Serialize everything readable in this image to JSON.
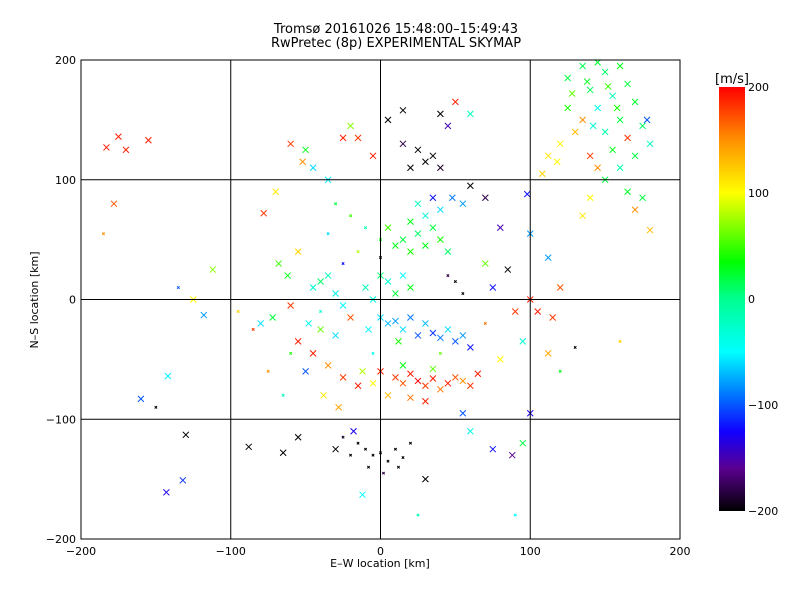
{
  "chart_data": {
    "type": "scatter",
    "title": "Tromsø 20161026 15:48:00–15:49:43",
    "subtitle": "RwPretec (8p) EXPERIMENTAL SKYMAP",
    "xlabel": "E–W location [km]",
    "ylabel": "N–S location [km]",
    "xlim": [
      -200,
      200
    ],
    "ylim": [
      -200,
      200
    ],
    "xticks": [
      "−200",
      "−100",
      "0",
      "100",
      "200"
    ],
    "yticks": [
      "−200",
      "−100",
      "0",
      "100",
      "200"
    ],
    "grid": true,
    "colorbar": {
      "label": "[m/s]",
      "range": [
        -200,
        200
      ],
      "ticks": [
        "200",
        "100",
        "0",
        "−100",
        "−200"
      ],
      "stops": [
        {
          "v": -200,
          "color": "#000000"
        },
        {
          "v": -160,
          "color": "#5a0090"
        },
        {
          "v": -125,
          "color": "#1000ff"
        },
        {
          "v": -90,
          "color": "#0078ff"
        },
        {
          "v": -50,
          "color": "#00ffff"
        },
        {
          "v": 0,
          "color": "#00ff90"
        },
        {
          "v": 35,
          "color": "#00ff00"
        },
        {
          "v": 100,
          "color": "#ffff00"
        },
        {
          "v": 150,
          "color": "#ff9000"
        },
        {
          "v": 200,
          "color": "#ff0000"
        }
      ]
    },
    "points_format": [
      "x_km",
      "y_km",
      "velocity_m_s",
      "marker"
    ],
    "points": [
      [
        125,
        185,
        20,
        "x"
      ],
      [
        135,
        195,
        15,
        "x"
      ],
      [
        145,
        198,
        25,
        "x"
      ],
      [
        150,
        190,
        10,
        "x"
      ],
      [
        160,
        195,
        30,
        "x"
      ],
      [
        165,
        180,
        20,
        "x"
      ],
      [
        140,
        175,
        15,
        "x"
      ],
      [
        155,
        170,
        -20,
        "x"
      ],
      [
        170,
        165,
        25,
        "x"
      ],
      [
        145,
        160,
        -40,
        "x"
      ],
      [
        160,
        150,
        20,
        "x"
      ],
      [
        175,
        145,
        10,
        "x"
      ],
      [
        135,
        150,
        150,
        "x"
      ],
      [
        130,
        140,
        130,
        "x"
      ],
      [
        150,
        140,
        -10,
        "x"
      ],
      [
        165,
        135,
        180,
        "x"
      ],
      [
        155,
        125,
        30,
        "x"
      ],
      [
        170,
        120,
        20,
        "x"
      ],
      [
        140,
        120,
        180,
        "x"
      ],
      [
        125,
        160,
        40,
        "x"
      ],
      [
        120,
        130,
        100,
        "x"
      ],
      [
        145,
        110,
        150,
        "x"
      ],
      [
        160,
        110,
        -10,
        "x"
      ],
      [
        178,
        150,
        -100,
        "x"
      ],
      [
        180,
        130,
        -20,
        "x"
      ],
      [
        150,
        100,
        20,
        "x"
      ],
      [
        165,
        90,
        25,
        "x"
      ],
      [
        175,
        85,
        20,
        "x"
      ],
      [
        140,
        85,
        100,
        "x"
      ],
      [
        170,
        75,
        150,
        "x"
      ],
      [
        180,
        58,
        130,
        "x"
      ],
      [
        135,
        70,
        110,
        "x"
      ],
      [
        112,
        120,
        110,
        "x"
      ],
      [
        118,
        115,
        100,
        "x"
      ],
      [
        108,
        105,
        120,
        "x"
      ],
      [
        138,
        182,
        30,
        "x"
      ],
      [
        152,
        178,
        50,
        "x"
      ],
      [
        142,
        145,
        -30,
        "x"
      ],
      [
        158,
        160,
        40,
        "x"
      ],
      [
        128,
        172,
        60,
        "x"
      ],
      [
        -183,
        127,
        190,
        "x"
      ],
      [
        -175,
        136,
        190,
        "x"
      ],
      [
        -170,
        125,
        190,
        "x"
      ],
      [
        -155,
        133,
        190,
        "x"
      ],
      [
        -178,
        80,
        170,
        "x"
      ],
      [
        -125,
        0,
        100,
        "x"
      ],
      [
        -112,
        25,
        70,
        "x"
      ],
      [
        -142,
        -64,
        -50,
        "x"
      ],
      [
        -160,
        -83,
        -100,
        "x"
      ],
      [
        -143,
        -161,
        -130,
        "x"
      ],
      [
        -132,
        -151,
        -110,
        "x"
      ],
      [
        -130,
        -113,
        -200,
        "x"
      ],
      [
        -88,
        -123,
        -200,
        "x"
      ],
      [
        -65,
        -128,
        -200,
        "x"
      ],
      [
        -118,
        -13,
        -80,
        "x"
      ],
      [
        -60,
        -5,
        180,
        "x"
      ],
      [
        -72,
        -15,
        20,
        "x"
      ],
      [
        -80,
        -20,
        -60,
        "x"
      ],
      [
        -68,
        30,
        50,
        "x"
      ],
      [
        -62,
        20,
        30,
        "x"
      ],
      [
        -55,
        40,
        120,
        "x"
      ],
      [
        -45,
        10,
        -30,
        "x"
      ],
      [
        -40,
        15,
        10,
        "x"
      ],
      [
        -35,
        20,
        -20,
        "x"
      ],
      [
        -30,
        5,
        -40,
        "x"
      ],
      [
        -25,
        -5,
        -50,
        "x"
      ],
      [
        -48,
        -20,
        -40,
        "x"
      ],
      [
        -40,
        -25,
        60,
        "x"
      ],
      [
        -30,
        -30,
        -60,
        "x"
      ],
      [
        -20,
        -15,
        170,
        "x"
      ],
      [
        -55,
        -35,
        190,
        "x"
      ],
      [
        -45,
        -45,
        190,
        "x"
      ],
      [
        -35,
        -55,
        150,
        "x"
      ],
      [
        -25,
        -65,
        180,
        "x"
      ],
      [
        -15,
        -72,
        190,
        "x"
      ],
      [
        -38,
        -80,
        110,
        "x"
      ],
      [
        -28,
        -90,
        140,
        "x"
      ],
      [
        -50,
        -60,
        -100,
        "x"
      ],
      [
        -10,
        10,
        -20,
        "x"
      ],
      [
        0,
        20,
        10,
        "x"
      ],
      [
        5,
        15,
        -30,
        "x"
      ],
      [
        10,
        5,
        20,
        "x"
      ],
      [
        15,
        20,
        -50,
        "x"
      ],
      [
        20,
        10,
        30,
        "x"
      ],
      [
        -5,
        0,
        -40,
        "x"
      ],
      [
        0,
        -15,
        -60,
        "x"
      ],
      [
        5,
        -20,
        -70,
        "x"
      ],
      [
        10,
        -18,
        -80,
        "x"
      ],
      [
        15,
        -25,
        -60,
        "x"
      ],
      [
        20,
        -15,
        -90,
        "x"
      ],
      [
        25,
        -30,
        -100,
        "x"
      ],
      [
        30,
        -20,
        -70,
        "x"
      ],
      [
        35,
        -28,
        -110,
        "x"
      ],
      [
        40,
        -32,
        -90,
        "x"
      ],
      [
        45,
        -25,
        -60,
        "x"
      ],
      [
        50,
        -35,
        -100,
        "x"
      ],
      [
        55,
        -30,
        -80,
        "x"
      ],
      [
        60,
        -40,
        -120,
        "x"
      ],
      [
        -8,
        -25,
        -50,
        "x"
      ],
      [
        12,
        -35,
        40,
        "x"
      ],
      [
        0,
        -60,
        190,
        "x"
      ],
      [
        10,
        -65,
        180,
        "x"
      ],
      [
        15,
        -70,
        170,
        "x"
      ],
      [
        20,
        -62,
        190,
        "x"
      ],
      [
        25,
        -68,
        200,
        "x"
      ],
      [
        30,
        -72,
        180,
        "x"
      ],
      [
        35,
        -66,
        190,
        "x"
      ],
      [
        40,
        -75,
        160,
        "x"
      ],
      [
        45,
        -70,
        190,
        "x"
      ],
      [
        50,
        -65,
        170,
        "x"
      ],
      [
        55,
        -68,
        150,
        "x"
      ],
      [
        60,
        -72,
        180,
        "x"
      ],
      [
        5,
        -80,
        130,
        "x"
      ],
      [
        20,
        -82,
        160,
        "x"
      ],
      [
        30,
        -85,
        190,
        "x"
      ],
      [
        -5,
        -70,
        100,
        "x"
      ],
      [
        -12,
        -60,
        80,
        "x"
      ],
      [
        15,
        -55,
        30,
        "x"
      ],
      [
        35,
        -58,
        60,
        "x"
      ],
      [
        65,
        -62,
        190,
        "x"
      ],
      [
        -15,
        -120,
        -200,
        "+"
      ],
      [
        -10,
        -125,
        -200,
        "+"
      ],
      [
        -5,
        -130,
        -200,
        "+"
      ],
      [
        0,
        -128,
        -200,
        "+"
      ],
      [
        5,
        -135,
        -200,
        "+"
      ],
      [
        10,
        -125,
        -200,
        "+"
      ],
      [
        15,
        -132,
        -200,
        "+"
      ],
      [
        -20,
        -130,
        -200,
        "+"
      ],
      [
        -8,
        -140,
        -200,
        "+"
      ],
      [
        2,
        -145,
        -180,
        "+"
      ],
      [
        12,
        -140,
        -200,
        "+"
      ],
      [
        -25,
        -115,
        -190,
        "+"
      ],
      [
        -30,
        -125,
        -200,
        "x"
      ],
      [
        -18,
        -110,
        -130,
        "x"
      ],
      [
        20,
        -120,
        -200,
        "+"
      ],
      [
        30,
        -150,
        -200,
        "x"
      ],
      [
        -12,
        -163,
        -50,
        "x"
      ],
      [
        -55,
        -115,
        -200,
        "x"
      ],
      [
        10,
        45,
        30,
        "x"
      ],
      [
        15,
        50,
        20,
        "x"
      ],
      [
        20,
        40,
        40,
        "x"
      ],
      [
        25,
        55,
        10,
        "x"
      ],
      [
        30,
        45,
        30,
        "x"
      ],
      [
        35,
        60,
        20,
        "x"
      ],
      [
        40,
        50,
        40,
        "x"
      ],
      [
        45,
        40,
        10,
        "x"
      ],
      [
        5,
        60,
        50,
        "x"
      ],
      [
        20,
        65,
        30,
        "x"
      ],
      [
        30,
        70,
        -30,
        "x"
      ],
      [
        40,
        75,
        -60,
        "x"
      ],
      [
        48,
        85,
        -90,
        "x"
      ],
      [
        35,
        85,
        -120,
        "x"
      ],
      [
        55,
        80,
        -80,
        "x"
      ],
      [
        25,
        80,
        -20,
        "x"
      ],
      [
        30,
        115,
        -200,
        "x"
      ],
      [
        35,
        120,
        -200,
        "x"
      ],
      [
        25,
        125,
        -200,
        "x"
      ],
      [
        40,
        110,
        -190,
        "x"
      ],
      [
        20,
        110,
        -200,
        "x"
      ],
      [
        15,
        130,
        -180,
        "x"
      ],
      [
        5,
        150,
        -200,
        "x"
      ],
      [
        15,
        158,
        -200,
        "x"
      ],
      [
        40,
        155,
        -200,
        "x"
      ],
      [
        45,
        145,
        -150,
        "x"
      ],
      [
        -25,
        135,
        190,
        "x"
      ],
      [
        -15,
        135,
        180,
        "x"
      ],
      [
        -5,
        120,
        190,
        "x"
      ],
      [
        -20,
        145,
        70,
        "x"
      ],
      [
        -45,
        110,
        -60,
        "x"
      ],
      [
        -50,
        125,
        30,
        "x"
      ],
      [
        -35,
        100,
        -50,
        "x"
      ],
      [
        -60,
        130,
        180,
        "x"
      ],
      [
        -52,
        115,
        150,
        "x"
      ],
      [
        50,
        165,
        190,
        "x"
      ],
      [
        60,
        155,
        -20,
        "x"
      ],
      [
        -70,
        90,
        110,
        "x"
      ],
      [
        -78,
        72,
        180,
        "x"
      ],
      [
        60,
        95,
        -200,
        "x"
      ],
      [
        70,
        85,
        -180,
        "x"
      ],
      [
        80,
        60,
        -150,
        "x"
      ],
      [
        85,
        25,
        -200,
        "x"
      ],
      [
        75,
        10,
        -120,
        "x"
      ],
      [
        70,
        30,
        60,
        "x"
      ],
      [
        90,
        -10,
        180,
        "x"
      ],
      [
        100,
        0,
        190,
        "x"
      ],
      [
        95,
        -35,
        -30,
        "x"
      ],
      [
        80,
        -50,
        100,
        "x"
      ],
      [
        100,
        -95,
        -130,
        "x"
      ],
      [
        55,
        -95,
        -100,
        "x"
      ],
      [
        60,
        -110,
        -40,
        "x"
      ],
      [
        75,
        -125,
        -120,
        "x"
      ],
      [
        88,
        -130,
        -160,
        "x"
      ],
      [
        95,
        -120,
        20,
        "x"
      ],
      [
        105,
        -10,
        190,
        "x"
      ],
      [
        115,
        -15,
        180,
        "x"
      ],
      [
        112,
        -45,
        140,
        "x"
      ],
      [
        120,
        10,
        170,
        "x"
      ],
      [
        112,
        35,
        -80,
        "x"
      ],
      [
        100,
        55,
        -80,
        "x"
      ],
      [
        98,
        88,
        -120,
        "x"
      ],
      [
        -30,
        80,
        20,
        "+"
      ],
      [
        -20,
        70,
        50,
        "+"
      ],
      [
        -10,
        60,
        -10,
        "+"
      ],
      [
        0,
        50,
        30,
        "+"
      ],
      [
        -35,
        55,
        -60,
        "+"
      ],
      [
        -15,
        40,
        80,
        "+"
      ],
      [
        -25,
        30,
        -120,
        "+"
      ],
      [
        0,
        35,
        -200,
        "+"
      ],
      [
        50,
        15,
        -200,
        "+"
      ],
      [
        55,
        5,
        -200,
        "+"
      ],
      [
        45,
        20,
        -180,
        "+"
      ],
      [
        -40,
        -10,
        -30,
        "+"
      ],
      [
        -60,
        -45,
        40,
        "+"
      ],
      [
        -5,
        -45,
        -40,
        "+"
      ],
      [
        40,
        -45,
        60,
        "+"
      ],
      [
        70,
        -20,
        160,
        "+"
      ],
      [
        -85,
        -25,
        180,
        "+"
      ],
      [
        -95,
        -10,
        120,
        "+"
      ],
      [
        -75,
        -60,
        150,
        "+"
      ],
      [
        -65,
        -80,
        -20,
        "+"
      ],
      [
        130,
        -40,
        -200,
        "+"
      ],
      [
        160,
        -35,
        120,
        "+"
      ],
      [
        120,
        -60,
        30,
        "+"
      ],
      [
        -135,
        10,
        -100,
        "+"
      ],
      [
        -185,
        55,
        150,
        "+"
      ],
      [
        -150,
        -90,
        -200,
        "+"
      ],
      [
        90,
        -180,
        -50,
        "+"
      ],
      [
        25,
        -180,
        -20,
        "+"
      ]
    ]
  }
}
